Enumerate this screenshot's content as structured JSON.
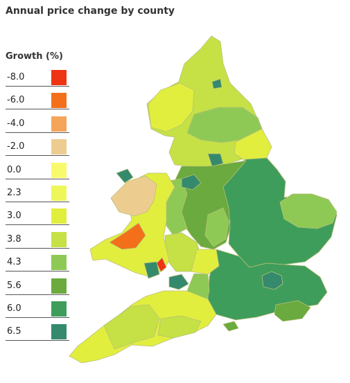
{
  "title": "Annual price change by county",
  "legend": {
    "title": "Growth (%)",
    "items": [
      {
        "label": "-8.0",
        "color": "#ee3412"
      },
      {
        "label": "-6.0",
        "color": "#f36f19"
      },
      {
        "label": "-4.0",
        "color": "#f5a55a"
      },
      {
        "label": "-2.0",
        "color": "#edcd8f"
      },
      {
        "label": "0.0",
        "color": "#f9f96c"
      },
      {
        "label": "2.3",
        "color": "#eef75a"
      },
      {
        "label": "3.0",
        "color": "#e2ee3e"
      },
      {
        "label": "3.8",
        "color": "#c5e145"
      },
      {
        "label": "4.3",
        "color": "#8ec955"
      },
      {
        "label": "5.6",
        "color": "#6aaa3e"
      },
      {
        "label": "6.0",
        "color": "#3f9d5b"
      },
      {
        "label": "6.5",
        "color": "#358a6e"
      }
    ]
  },
  "map": {
    "border_color": "#b9c07a",
    "regions": [
      {
        "region": "north-england",
        "color": "#c5e145"
      },
      {
        "region": "east-england",
        "color": "#3f9d5b"
      },
      {
        "region": "south-east-england",
        "color": "#3f9d5b"
      },
      {
        "region": "midlands",
        "color": "#6aaa3e"
      },
      {
        "region": "south-west-england",
        "color": "#e2ee3e"
      },
      {
        "region": "wales",
        "color": "#e2ee3e"
      }
    ]
  }
}
